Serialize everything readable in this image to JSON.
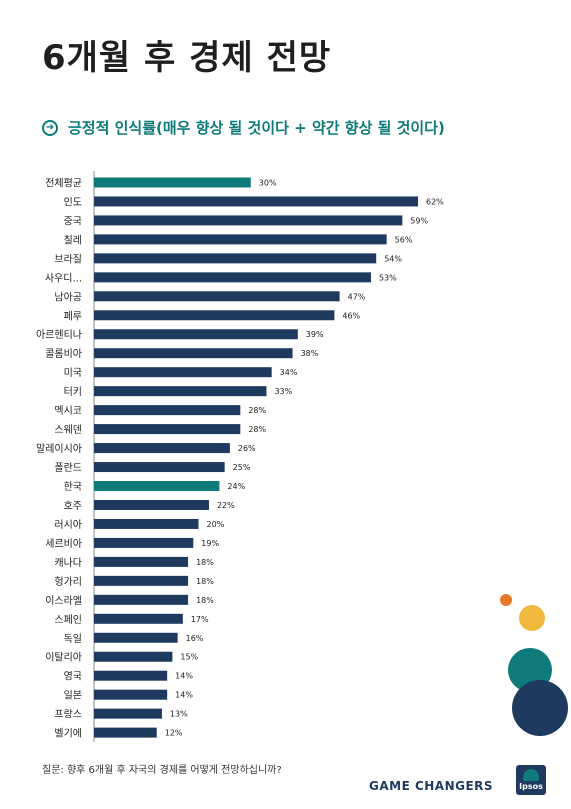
{
  "page": {
    "title": "6개월 후 경제 전망",
    "subtitle": "긍정적 인식률(매우 향상 될 것이다 + 약간 향상 될 것이다)",
    "footnote": "질문: 향후 6개월 후 자국의 경제를 어떻게 전망하십니까?",
    "brand": "GAME CHANGERS",
    "logo_text": "Ipsos"
  },
  "colors": {
    "bar_default": "#1e3a5f",
    "bar_highlight": "#0f7a7a",
    "accent_orange": "#e8772e",
    "accent_yellow": "#f0b83c",
    "accent_teal": "#0f7a7a",
    "accent_navy": "#1e3a5f"
  },
  "icons": {
    "subtitle": "arrow-circle-icon",
    "logo": "ipsos-logo"
  },
  "chart_data": {
    "type": "bar",
    "orientation": "horizontal",
    "unit": "%",
    "xlim": [
      0,
      62
    ],
    "highlighted": [
      "전체평균",
      "한국"
    ],
    "categories": [
      "전체평균",
      "인도",
      "중국",
      "칠레",
      "브라질",
      "사우디...",
      "남아공",
      "페루",
      "아르헨티나",
      "콜롬비아",
      "미국",
      "터키",
      "멕시코",
      "스웨덴",
      "말레이시아",
      "폴란드",
      "한국",
      "호주",
      "러시아",
      "세르비아",
      "캐나다",
      "헝가리",
      "이스라엘",
      "스페인",
      "독일",
      "이탈리아",
      "영국",
      "일본",
      "프랑스",
      "벨기에"
    ],
    "values": [
      30,
      62,
      59,
      56,
      54,
      53,
      47,
      46,
      39,
      38,
      34,
      33,
      28,
      28,
      26,
      25,
      24,
      22,
      20,
      19,
      18,
      18,
      18,
      17,
      16,
      15,
      14,
      14,
      13,
      12
    ]
  }
}
